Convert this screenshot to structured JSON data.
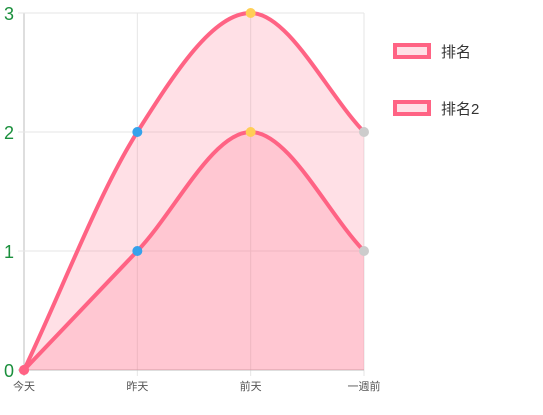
{
  "chart_data": {
    "type": "area",
    "categories": [
      "今天",
      "昨天",
      "前天",
      "一週前"
    ],
    "ylim": [
      0,
      3
    ],
    "y_ticks": [
      "0",
      "1",
      "2",
      "3"
    ],
    "grid": true,
    "legend_position": "right",
    "series": [
      {
        "name": "排名",
        "values": [
          0,
          2,
          3,
          2
        ],
        "border_color": "#ff6384",
        "fill_color": "rgba(255,99,132,0.2)",
        "point_colors": [
          "#ff6384",
          "#36a2eb",
          "#ffce56",
          "#cccccc"
        ]
      },
      {
        "name": "排名2",
        "values": [
          0,
          1,
          2,
          1
        ],
        "border_color": "#ff6384",
        "fill_color": "rgba(255,99,132,0.2)",
        "point_colors": [
          "#ff6384",
          "#36a2eb",
          "#ffce56",
          "#cccccc"
        ]
      }
    ],
    "colors": {
      "y_tick_label": "#1a8f3c",
      "x_tick_label": "#555555",
      "grid": "#e6e6e6",
      "axis": "#bdbdbd"
    }
  }
}
